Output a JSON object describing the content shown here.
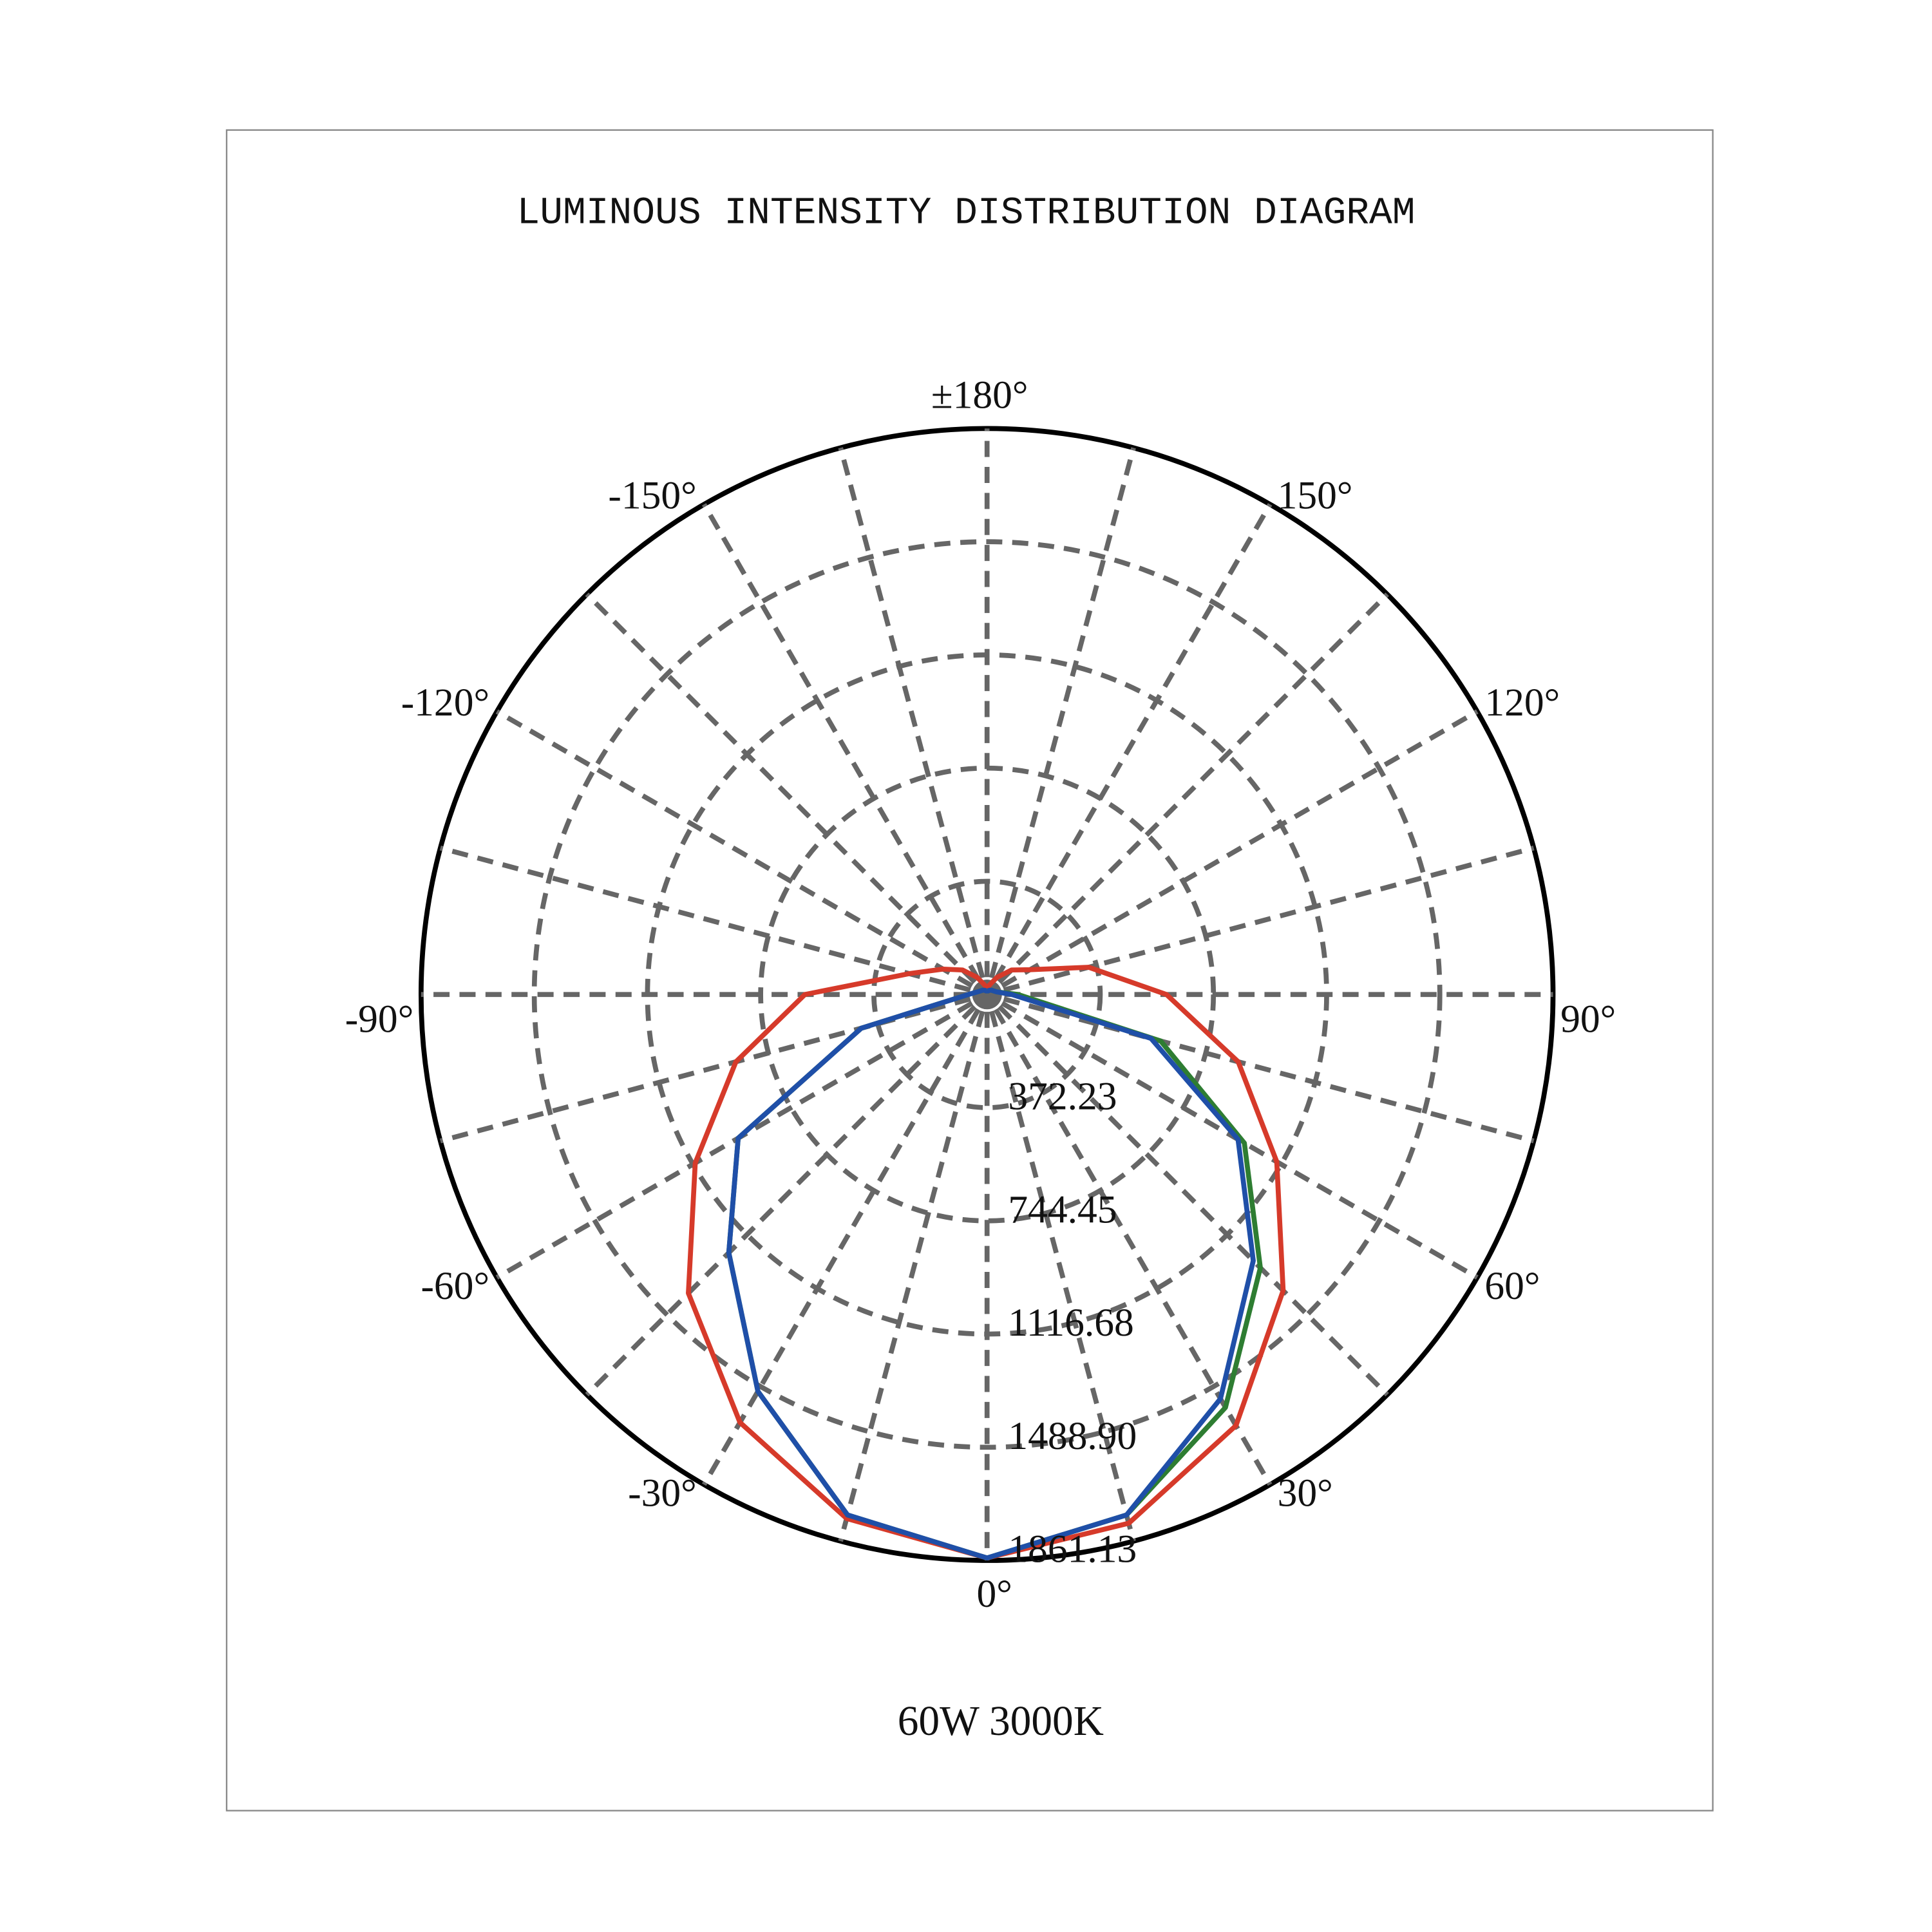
{
  "chart_data": {
    "type": "polar",
    "title": "LUMINOUS INTENSITY DISTRIBUTION DIAGRAM",
    "subtitle": "60W 3000K",
    "theta": [
      -180,
      -165,
      -150,
      -135,
      -120,
      -105,
      -90,
      -75,
      -60,
      -45,
      -30,
      -15,
      0,
      15,
      30,
      45,
      60,
      75,
      90,
      105,
      120,
      135,
      150,
      165,
      180
    ],
    "series": [
      {
        "color": "#d63a2a",
        "values": [
          20,
          33,
          65,
          114,
          167,
          265,
          599,
          855,
          1108,
          1389,
          1625,
          1784,
          1853,
          1800,
          1637,
          1377,
          1100,
          855,
          590,
          346,
          163,
          114,
          65,
          33,
          20
        ]
      },
      {
        "color": "#2e7d32",
        "values": [
          12,
          12,
          16,
          20,
          24,
          33,
          61,
          428,
          945,
          1201,
          1507,
          1772,
          1853,
          1772,
          1568,
          1271,
          977,
          591,
          102,
          33,
          24,
          20,
          16,
          12,
          12
        ]
      },
      {
        "color": "#1f4fa8",
        "values": [
          12,
          12,
          16,
          20,
          24,
          33,
          61,
          428,
          945,
          1201,
          1507,
          1772,
          1853,
          1772,
          1535,
          1238,
          953,
          558,
          81,
          33,
          24,
          20,
          16,
          12,
          12
        ]
      }
    ],
    "rlim": [
      0,
      1861.13
    ],
    "rticks": [
      372.23,
      744.45,
      1116.68,
      {
        "value": 1488.9,
        "label": "1488.90"
      },
      1861.13
    ],
    "thetaticks": [
      {
        "value": 0,
        "label": "0°"
      },
      {
        "value": 30,
        "label": "30°"
      },
      {
        "value": 60,
        "label": "60°"
      },
      {
        "value": 90,
        "label": "90°"
      },
      {
        "value": 120,
        "label": "120°"
      },
      {
        "value": 150,
        "label": "150°"
      },
      {
        "value": 180,
        "label": "±180°"
      },
      {
        "value": -150,
        "label": "-150°"
      },
      {
        "value": -120,
        "label": "-120°"
      },
      {
        "value": -90,
        "label": "-90°"
      },
      {
        "value": -60,
        "label": "-60°"
      },
      {
        "value": -30,
        "label": "-30°"
      }
    ],
    "thetaminorticks": [
      15,
      45,
      75,
      105,
      135,
      165,
      -165,
      -135,
      -105,
      -75,
      -45,
      -15
    ],
    "grid": true
  }
}
